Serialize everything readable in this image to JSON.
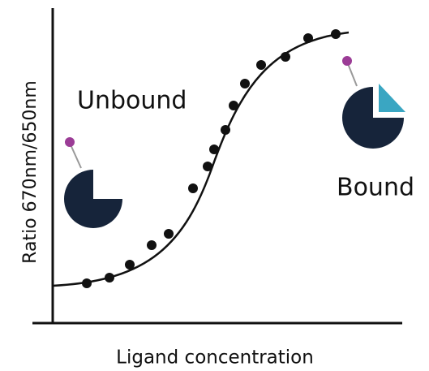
{
  "diagram": {
    "y_label": "Ratio 670nm/650nm",
    "x_label": "Ligand concentration",
    "left_label": "Unbound",
    "right_label": "Bound"
  }
}
